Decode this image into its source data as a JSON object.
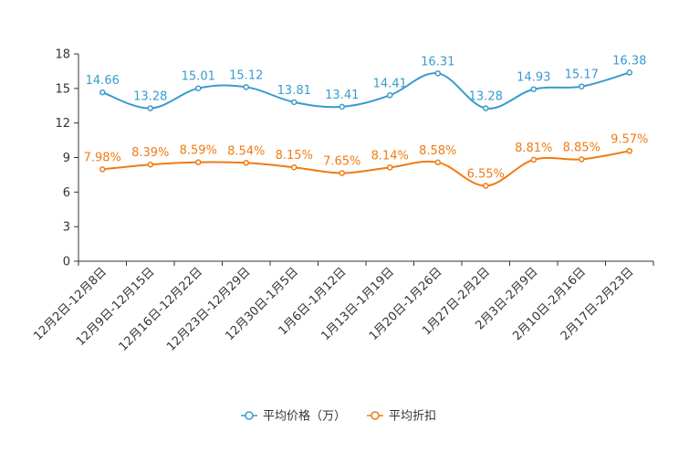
{
  "chart_data": {
    "type": "line",
    "categories": [
      "12月2日-12月8日",
      "12月9日-12月15日",
      "12月16日-12月22日",
      "12月23日-12月29日",
      "12月30日-1月5日",
      "1月6日-1月12日",
      "1月13日-1月19日",
      "1月20日-1月26日",
      "1月27日-2月2日",
      "2月3日-2月9日",
      "2月10日-2月16日",
      "2月17日-2月23日"
    ],
    "ylim": [
      0,
      18
    ],
    "yticks": [
      0,
      3,
      6,
      9,
      12,
      15,
      18
    ],
    "series": [
      {
        "name": "平均价格（万）",
        "color": "#3a9bcf",
        "values": [
          14.66,
          13.28,
          15.01,
          15.12,
          13.81,
          13.41,
          14.41,
          16.31,
          13.28,
          14.93,
          15.17,
          16.38
        ],
        "labels": [
          "14.66",
          "13.28",
          "15.01",
          "15.12",
          "13.81",
          "13.41",
          "14.41",
          "16.31",
          "13.28",
          "14.93",
          "15.17",
          "16.38"
        ]
      },
      {
        "name": "平均折扣",
        "color": "#f07b14",
        "values": [
          7.98,
          8.39,
          8.59,
          8.54,
          8.15,
          7.65,
          8.14,
          8.58,
          6.55,
          8.81,
          8.85,
          9.57
        ],
        "labels": [
          "7.98%",
          "8.39%",
          "8.59%",
          "8.54%",
          "8.15%",
          "7.65%",
          "8.14%",
          "8.58%",
          "6.55%",
          "8.81%",
          "8.85%",
          "9.57%"
        ]
      }
    ]
  }
}
